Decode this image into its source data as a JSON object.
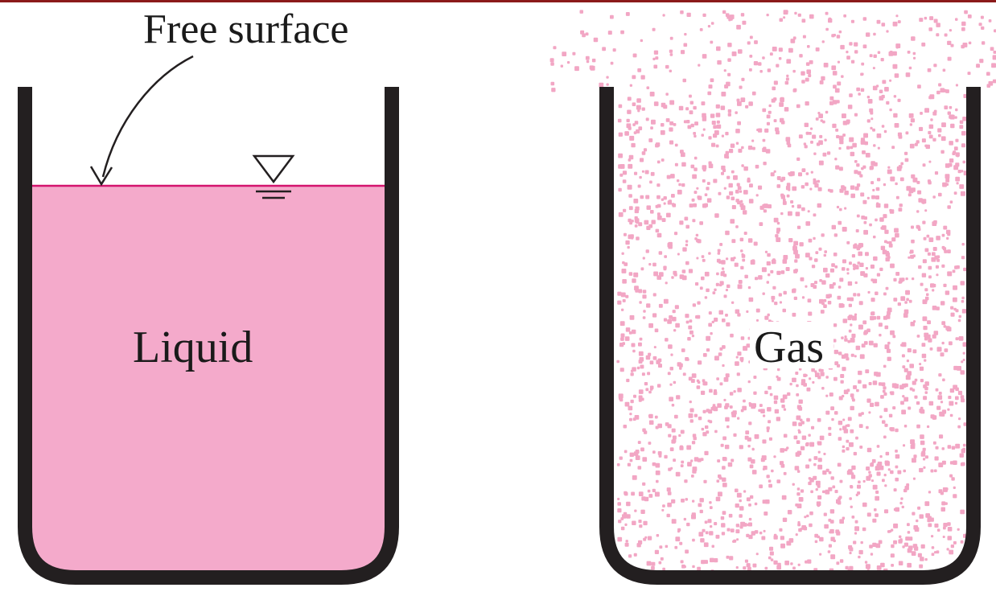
{
  "labels": {
    "free_surface": "Free surface",
    "liquid": "Liquid",
    "gas": "Gas"
  },
  "colors": {
    "top_rule": "#8b1a1a",
    "container_wall": "#231f20",
    "liquid_fill": "#f4aacb",
    "surface_line": "#d4146e",
    "gas_dots": "#f2a6c4",
    "text": "#1a1a1a"
  }
}
